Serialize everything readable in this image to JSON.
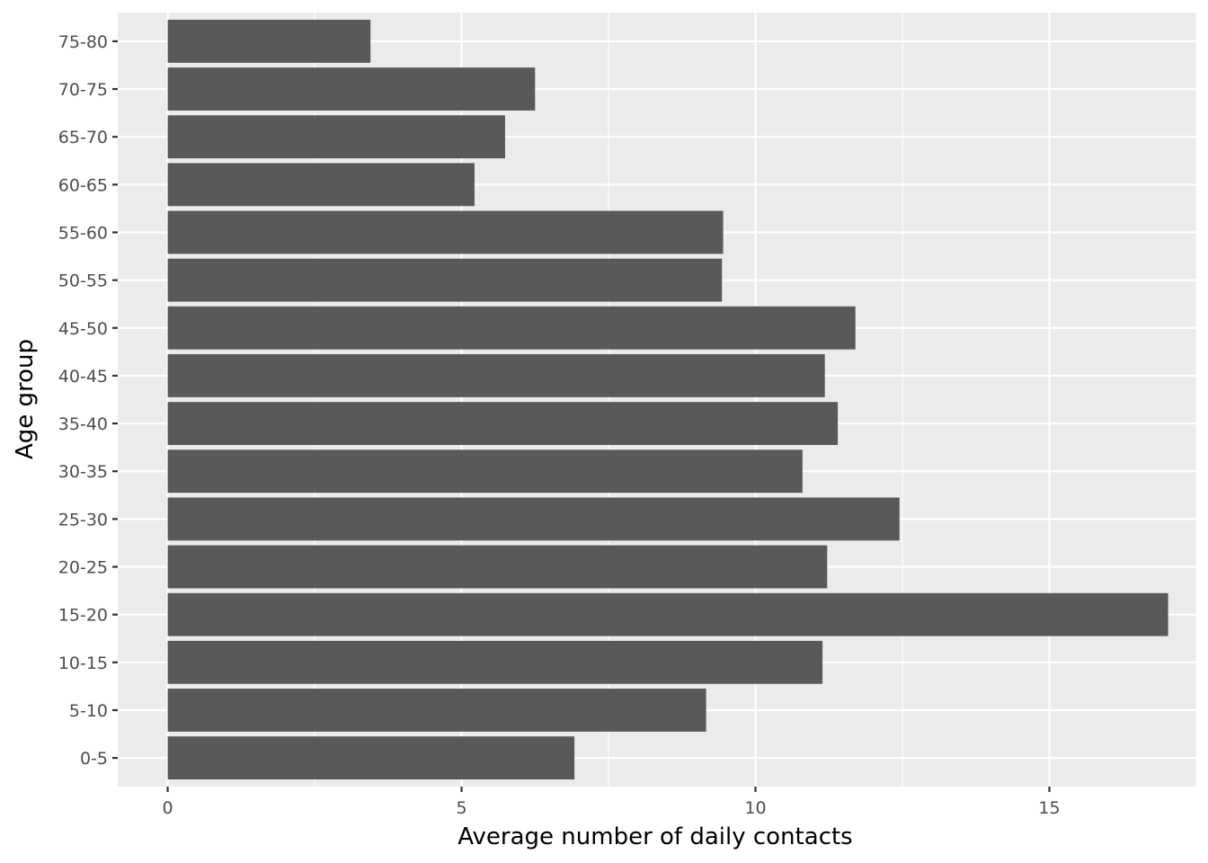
{
  "chart_data": {
    "type": "bar",
    "orientation": "horizontal",
    "xlabel": "Average number of daily contacts",
    "ylabel": "Age group",
    "categories": [
      "0-5",
      "5-10",
      "10-15",
      "15-20",
      "20-25",
      "25-30",
      "30-35",
      "35-40",
      "40-45",
      "45-50",
      "50-55",
      "55-60",
      "60-65",
      "65-70",
      "70-75",
      "75-80"
    ],
    "values": [
      6.92,
      9.16,
      11.14,
      17.02,
      11.22,
      12.45,
      10.8,
      11.4,
      11.18,
      11.7,
      9.43,
      9.45,
      5.22,
      5.74,
      6.25,
      3.45
    ],
    "xlim": [
      -0.85,
      17.5
    ],
    "x_ticks": [
      0,
      5,
      10,
      15
    ],
    "x_tick_labels": [
      "0",
      "5",
      "10",
      "15"
    ],
    "grid": true,
    "colors": {
      "bar": "#595959",
      "panel_background": "#ebebeb",
      "grid_line": "#ffffff"
    }
  }
}
